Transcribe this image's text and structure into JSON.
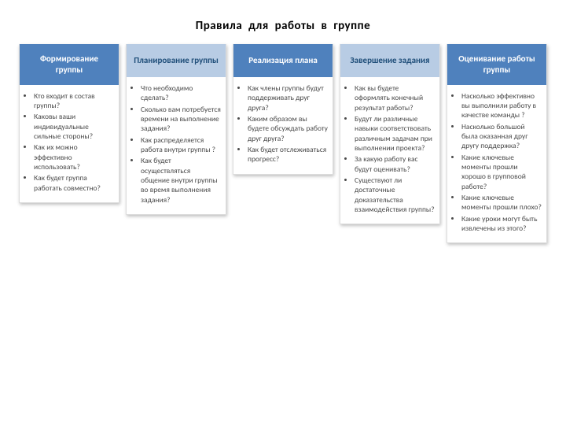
{
  "title": "Правила для работы в группе",
  "header_text_colors": {
    "light_on_dark": "#ffffff",
    "dark_on_light": "#1f4e79"
  },
  "body_text_color": "#4a4a4a",
  "card_shadow": "1px 2px 4px rgba(0,0,0,0.25)",
  "card_border_color": "#dddddd",
  "columns": [
    {
      "heading": "Формирование группы",
      "header_bg": "#4f81bd",
      "header_fg": "#ffffff",
      "items": [
        "Кто входит в состав группы?",
        "Каковы ваши индивидуальные сильные стороны?",
        "Как их можно эффективно использовать?",
        "Как будет группа работать совместно?"
      ]
    },
    {
      "heading": "Планирование группы",
      "header_bg": "#b8cce4",
      "header_fg": "#1f4e79",
      "items": [
        "Что необходимо сделать?",
        "Сколько вам потребуется времени на выполнение задания?",
        "Как распределяется работа внутри группы ?",
        "Как будет осуществляться общение внутри группы во время выполнения задания?"
      ]
    },
    {
      "heading": "Реализация плана",
      "header_bg": "#4f81bd",
      "header_fg": "#ffffff",
      "items": [
        "Как члены группы будут поддерживать друг друга?",
        "Каким образом вы будете обсуждать работу друг друга?",
        "Как будет отслеживаться прогресс?"
      ]
    },
    {
      "heading": "Завершение задания",
      "header_bg": "#b8cce4",
      "header_fg": "#1f4e79",
      "items": [
        "Как вы будете оформлять конечный результат работы?",
        "Будут ли различные навыки соответствовать различным задачам при выполнении проекта?",
        "За какую работу вас будут оценивать?",
        "Существуют ли достаточные доказательства взаимодействия группы?"
      ]
    },
    {
      "heading": "Оценивание работы группы",
      "header_bg": "#4f81bd",
      "header_fg": "#ffffff",
      "items": [
        "Насколько эффективно вы выполнили работу в качестве команды ?",
        "Насколько большой была оказанная друг другу поддержка?",
        "Какие ключевые моменты прошли хорошо в групповой работе?",
        "Какие ключевые моменты прошли плохо?",
        "Какие уроки могут быть извлечены из этого?"
      ]
    }
  ]
}
